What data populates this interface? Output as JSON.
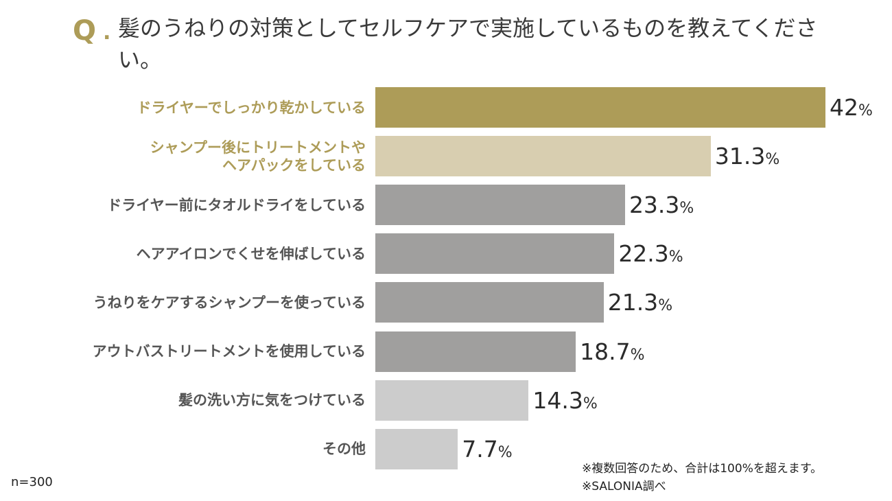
{
  "title": {
    "q_mark": "Q",
    "q_dot": ".",
    "text": "髪のうねりの対策としてセルフケアで実施しているものを教えてください。"
  },
  "chart_data": {
    "type": "bar",
    "orientation": "horizontal",
    "unit": "%",
    "categories": [
      "ドライヤーでしっかり乾かしている",
      "シャンプー後にトリートメントや\nヘアパックをしている",
      "ドライヤー前にタオルドライをしている",
      "ヘアアイロンでくせを伸ばしている",
      "うねりをケアするシャンプーを使っている",
      "アウトバストリートメントを使用している",
      "髪の洗い方に気をつけている",
      "その他"
    ],
    "values": [
      42,
      31.3,
      23.3,
      22.3,
      21.3,
      18.7,
      14.3,
      7.7
    ],
    "value_labels": [
      "42",
      "31.3",
      "23.3",
      "22.3",
      "21.3",
      "18.7",
      "14.3",
      "7.7"
    ],
    "bar_colors": [
      "#ad9c58",
      "#d8ceb0",
      "#a09f9e",
      "#a09f9e",
      "#a09f9e",
      "#a09f9e",
      "#cccccc",
      "#cccccc"
    ],
    "label_colors": [
      "#ad9c58",
      "#ad9c58",
      "#555555",
      "#555555",
      "#555555",
      "#555555",
      "#555555",
      "#555555"
    ],
    "grid": false,
    "axes_visible": false
  },
  "footer": {
    "sample": "n=300",
    "note1": "※複数回答のため、合計は100%を超えます。",
    "note2": "※SALONIA調べ"
  }
}
